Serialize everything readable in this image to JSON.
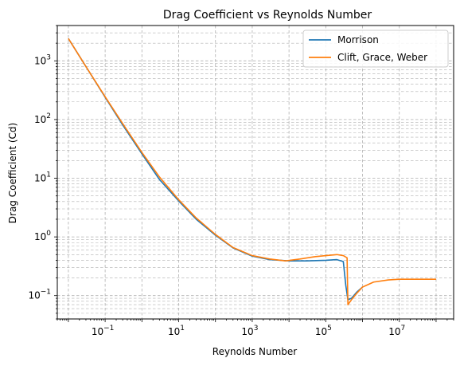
{
  "chart_data": {
    "type": "line",
    "title": "Drag Coefficient vs Reynolds Number",
    "xlabel": "Reynolds Number",
    "ylabel": "Drag Coefficient (Cd)",
    "xscale": "log",
    "yscale": "log",
    "xlim": [
      0.005,
      300000000
    ],
    "ylim": [
      0.04,
      4000
    ],
    "grid": "both, dashed",
    "legend_position": "top-right",
    "x_ticks": [
      {
        "value": 0.1,
        "base": "10",
        "exp": "−1"
      },
      {
        "value": 10,
        "base": "10",
        "exp": "1"
      },
      {
        "value": 1000,
        "base": "10",
        "exp": "3"
      },
      {
        "value": 100000,
        "base": "10",
        "exp": "5"
      },
      {
        "value": 10000000,
        "base": "10",
        "exp": "7"
      }
    ],
    "y_ticks": [
      {
        "value": 0.1,
        "base": "10",
        "exp": "−1"
      },
      {
        "value": 1,
        "base": "10",
        "exp": "0"
      },
      {
        "value": 10,
        "base": "10",
        "exp": "1"
      },
      {
        "value": 100,
        "base": "10",
        "exp": "2"
      },
      {
        "value": 1000,
        "base": "10",
        "exp": "3"
      }
    ],
    "series": [
      {
        "name": "Morrison",
        "color": "#1f77b4",
        "x": [
          0.01,
          0.03,
          0.1,
          0.3,
          1,
          3,
          10,
          30,
          100,
          300,
          1000,
          3000,
          10000,
          30000,
          100000,
          200000,
          300000,
          350000,
          400000,
          500000,
          700000,
          1000000
        ],
        "y": [
          2400,
          800,
          240,
          81,
          26,
          9.5,
          4.1,
          2.0,
          1.07,
          0.65,
          0.47,
          0.41,
          0.39,
          0.39,
          0.4,
          0.41,
          0.38,
          0.15,
          0.085,
          0.09,
          0.115,
          0.14
        ]
      },
      {
        "name": "Clift, Grace, Weber",
        "color": "#ff7f0e",
        "x": [
          0.01,
          0.03,
          0.1,
          0.3,
          1,
          3,
          10,
          30,
          100,
          300,
          1000,
          3000,
          8000,
          20000,
          50000,
          100000,
          200000,
          300000,
          380000,
          400000,
          500000,
          700000,
          1000000,
          2000000,
          5000000,
          10000000,
          30000000,
          100000000
        ],
        "y": [
          2400,
          800,
          245,
          85,
          27.5,
          10.5,
          4.3,
          2.1,
          1.1,
          0.66,
          0.48,
          0.42,
          0.39,
          0.42,
          0.46,
          0.48,
          0.5,
          0.48,
          0.44,
          0.07,
          0.085,
          0.11,
          0.14,
          0.17,
          0.185,
          0.19,
          0.19,
          0.19
        ]
      }
    ]
  }
}
